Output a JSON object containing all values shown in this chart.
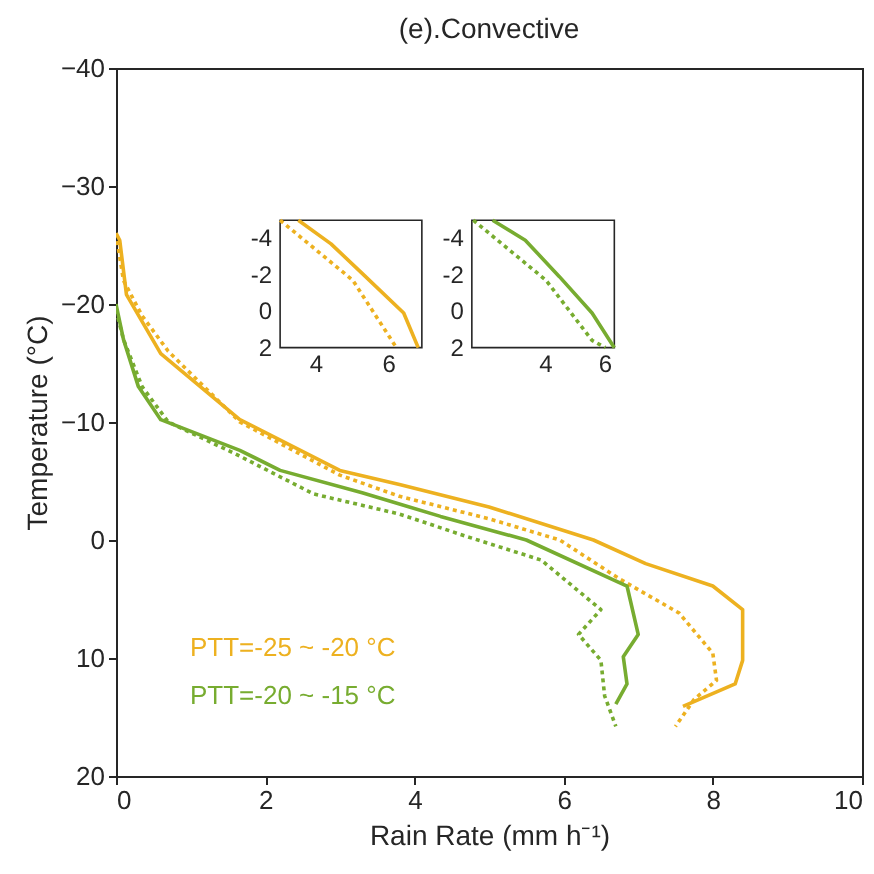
{
  "chart_data": [
    {
      "type": "line",
      "title": "(e).Convective",
      "xlabel": "Rain Rate (mm h⁻¹)",
      "ylabel": "Temperature (°C)",
      "xlim": [
        0,
        10
      ],
      "ylim": [
        20,
        -40
      ],
      "xticks": [
        0,
        2,
        4,
        6,
        8,
        10
      ],
      "yticks": [
        -40,
        -30,
        -20,
        -10,
        0,
        10,
        20
      ],
      "grid": false,
      "legend": "bottom left",
      "series": [
        {
          "name": "PTT=-25 ~ -20 °C",
          "color": "#edb120",
          "line_style": "solid",
          "x": [
            0,
            0.05,
            0.14,
            0.6,
            1.66,
            3.0,
            3.8,
            5.0,
            6.4,
            7.1,
            8.0,
            8.4,
            8.4,
            8.3,
            7.6
          ],
          "values": [
            -26,
            -25.4,
            -20.8,
            -15.8,
            -10.2,
            -5.9,
            -4.7,
            -2.8,
            0,
            2,
            3.9,
            5.9,
            10.2,
            12.2,
            14.1
          ]
        },
        {
          "color": "#edb120",
          "line_style": "dotted",
          "x": [
            0,
            0.1,
            0.35,
            0.7,
            1.66,
            3.0,
            3.8,
            5.0,
            5.95,
            6.75,
            7.55,
            8.0,
            8.05,
            7.75,
            7.5
          ],
          "values": [
            -26,
            -22,
            -19,
            -16,
            -10,
            -5.5,
            -3.7,
            -1.8,
            0,
            3.3,
            6.2,
            9.6,
            11.9,
            13.5,
            15.8
          ]
        },
        {
          "name": "PTT=-20 ~ -15 °C",
          "color": "#77ac30",
          "line_style": "solid",
          "x": [
            0,
            0.1,
            0.3,
            0.6,
            1.66,
            2.2,
            3.3,
            4.35,
            5.5,
            6.85,
            7.0,
            6.8,
            6.85,
            6.7
          ],
          "values": [
            -20,
            -17,
            -13,
            -10.2,
            -7.6,
            -5.9,
            -4,
            -2,
            0,
            3.9,
            8,
            9.9,
            12.2,
            13.9
          ]
        },
        {
          "color": "#77ac30",
          "line_style": "dotted",
          "x": [
            0,
            0.1,
            0.35,
            0.7,
            1.6,
            2.65,
            3.8,
            4.7,
            5.7,
            6.5,
            6.2,
            6.5,
            6.55,
            6.7
          ],
          "values": [
            -19.5,
            -17,
            -13,
            -10,
            -7.3,
            -3.9,
            -2.2,
            -0.3,
            1.7,
            5.9,
            8,
            10.2,
            13.2,
            15.8
          ]
        }
      ]
    },
    {
      "type": "line",
      "xlim": [
        3,
        6.9
      ],
      "ylim": [
        2,
        -5
      ],
      "xticks": [
        4,
        6
      ],
      "yticks": [
        -4,
        -2,
        0,
        2
      ],
      "series": [
        {
          "color": "#edb120",
          "line_style": "solid",
          "x": [
            3.5,
            4.4,
            5.3,
            6.4,
            6.8
          ],
          "values": [
            -5,
            -3.7,
            -2,
            0.1,
            2
          ]
        },
        {
          "color": "#edb120",
          "line_style": "dotted",
          "x": [
            3.0,
            5.0,
            6.2
          ],
          "values": [
            -5,
            -1.7,
            2
          ]
        }
      ]
    },
    {
      "type": "line",
      "xlim": [
        1.5,
        6.3
      ],
      "ylim": [
        2,
        -5
      ],
      "xticks": [
        4,
        6
      ],
      "yticks": [
        -4,
        -2,
        0,
        2
      ],
      "series": [
        {
          "color": "#77ac30",
          "line_style": "solid",
          "x": [
            2.2,
            3.3,
            4.45,
            5.55,
            6.3
          ],
          "values": [
            -5,
            -3.9,
            -1.9,
            0.1,
            2
          ]
        },
        {
          "color": "#77ac30",
          "line_style": "dotted",
          "x": [
            1.55,
            4.0,
            5.55,
            6.0
          ],
          "values": [
            -5,
            -1.7,
            1.6,
            2
          ]
        }
      ]
    }
  ]
}
